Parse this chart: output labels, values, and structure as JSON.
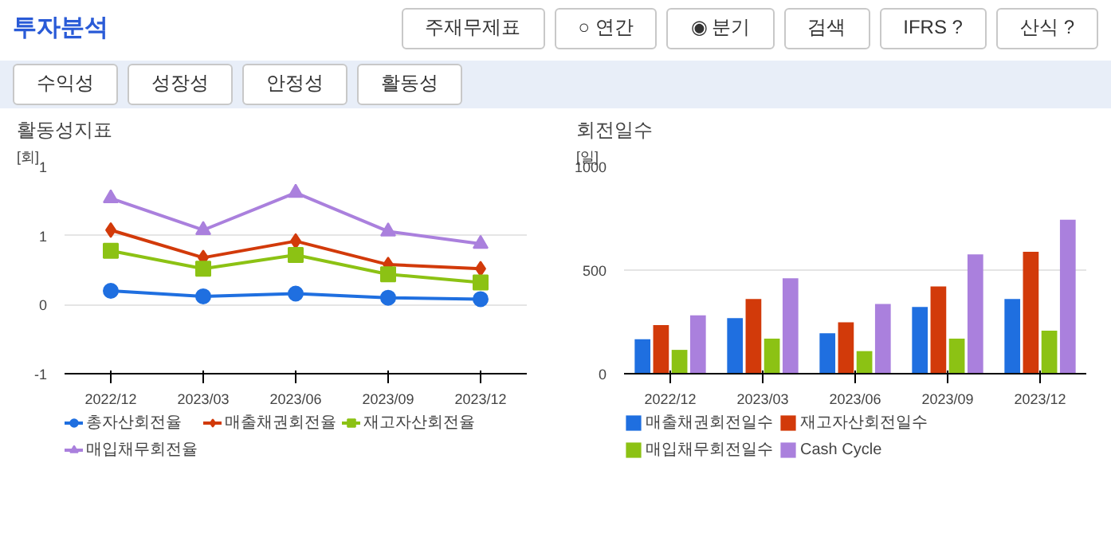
{
  "chart_data": [
    {
      "type": "other",
      "title": "투자분석",
      "annotations": [
        "주재무제표",
        "○ 연간",
        "◉ 분기",
        "검색",
        "IFRS ?",
        "산식 ?"
      ]
    },
    {
      "type": "other",
      "annotations": [
        "수익성",
        "성장성",
        "안정성",
        "활동성"
      ]
    },
    {
      "type": "line",
      "title": "활동성지표",
      "ylabel": "[회]",
      "categories": [
        "2022/12",
        "2023/03",
        "2023/06",
        "2023/09",
        "2023/12"
      ],
      "ylim": [
        -0.5,
        1.0
      ],
      "yticks": [
        {
          "value": -0.5,
          "label": "-1"
        },
        0,
        {
          "value": 0.5,
          "label": "1"
        },
        {
          "value": 1.0,
          "label": "1"
        }
      ],
      "grid": "y",
      "legend": "bottom",
      "series": [
        {
          "name": "총자산회전율",
          "color": "#1f6fe0",
          "marker": "circle",
          "values": [
            0.1,
            0.06,
            0.08,
            0.05,
            0.04
          ]
        },
        {
          "name": "매출채권회전율",
          "color": "#d23a0a",
          "marker": "diamond",
          "values": [
            0.54,
            0.34,
            0.46,
            0.29,
            0.26
          ]
        },
        {
          "name": "재고자산회전율",
          "color": "#8cc214",
          "marker": "square",
          "values": [
            0.39,
            0.26,
            0.36,
            0.22,
            0.16
          ]
        },
        {
          "name": "매입채무회전율",
          "color": "#aa80dd",
          "marker": "triangle",
          "values": [
            0.77,
            0.54,
            0.81,
            0.53,
            0.44
          ]
        }
      ]
    },
    {
      "type": "bar",
      "title": "회전일수",
      "ylabel": "[일]",
      "categories": [
        "2022/12",
        "2023/03",
        "2023/06",
        "2023/09",
        "2023/12"
      ],
      "ylim": [
        0,
        1000
      ],
      "yticks": [
        0,
        500,
        1000
      ],
      "grid": "y",
      "legend": "bottom",
      "series": [
        {
          "name": "매출채권회전일수",
          "color": "#1f6fe0",
          "values": [
            166,
            268,
            195,
            322,
            361
          ]
        },
        {
          "name": "재고자산회전일수",
          "color": "#d23a0a",
          "values": [
            235,
            361,
            248,
            421,
            588
          ]
        },
        {
          "name": "매입채무회전일수",
          "color": "#8cc214",
          "values": [
            115,
            169,
            109,
            169,
            208
          ]
        },
        {
          "name": "Cash Cycle",
          "color": "#aa80dd",
          "values": [
            282,
            461,
            337,
            576,
            743
          ]
        }
      ]
    }
  ]
}
